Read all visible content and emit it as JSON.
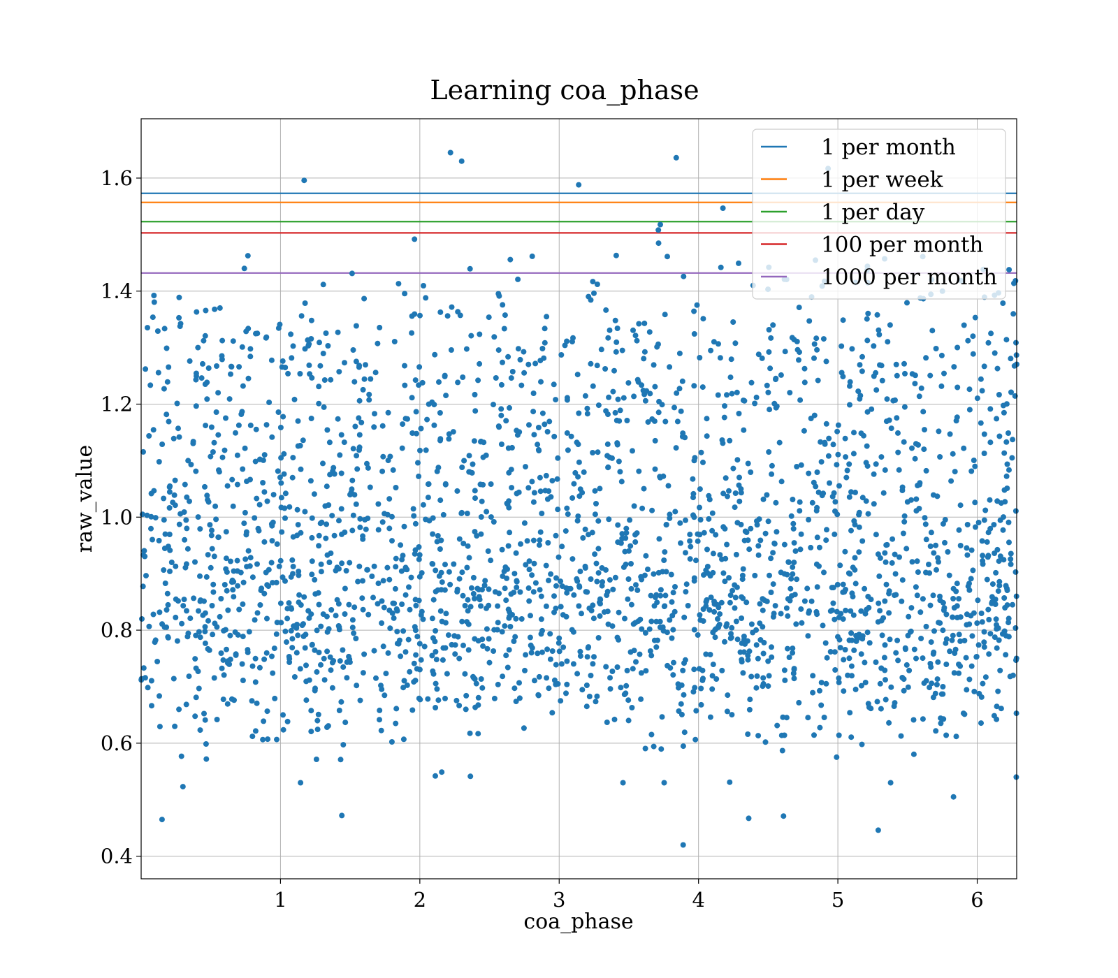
{
  "chart_data": {
    "type": "scatter",
    "title": "Learning coa_phase",
    "xlabel": "coa_phase",
    "ylabel": "raw_value",
    "xlim": [
      0,
      6.2832
    ],
    "ylim": [
      0.36,
      1.705
    ],
    "x_ticks": [
      1,
      2,
      3,
      4,
      5,
      6
    ],
    "y_ticks": [
      0.4,
      0.6,
      0.8,
      1.0,
      1.2,
      1.4,
      1.6
    ],
    "x_tick_labels": [
      "1",
      "2",
      "3",
      "4",
      "5",
      "6"
    ],
    "y_tick_labels": [
      "0.4",
      "0.6",
      "0.8",
      "1.0",
      "1.2",
      "1.4",
      "1.6"
    ],
    "grid": true,
    "legend_position": "top-right",
    "scatter_color": "#1f77b4",
    "point_count": 2500,
    "notable_points": [
      {
        "x": 2.22,
        "y": 1.645
      },
      {
        "x": 2.3,
        "y": 1.63
      },
      {
        "x": 3.84,
        "y": 1.636
      },
      {
        "x": 1.17,
        "y": 1.596
      },
      {
        "x": 3.14,
        "y": 1.588
      },
      {
        "x": 4.93,
        "y": 1.617
      },
      {
        "x": 0.15,
        "y": 0.465
      },
      {
        "x": 1.44,
        "y": 0.472
      },
      {
        "x": 3.89,
        "y": 0.42
      },
      {
        "x": 5.29,
        "y": 0.446
      },
      {
        "x": 4.61,
        "y": 0.471
      },
      {
        "x": 4.36,
        "y": 0.467
      },
      {
        "x": 5.83,
        "y": 0.505
      },
      {
        "x": 0.3,
        "y": 0.523
      },
      {
        "x": 6.28,
        "y": 0.54
      }
    ],
    "lines": [
      {
        "name": "1 per month",
        "y": 1.573,
        "color": "#1f77b4"
      },
      {
        "name": "1 per week",
        "y": 1.557,
        "color": "#ff7f0e"
      },
      {
        "name": "1 per day",
        "y": 1.523,
        "color": "#2ca02c"
      },
      {
        "name": "100 per month",
        "y": 1.503,
        "color": "#d62728"
      },
      {
        "name": "1000 per month",
        "y": 1.432,
        "color": "#9467bd"
      }
    ]
  }
}
